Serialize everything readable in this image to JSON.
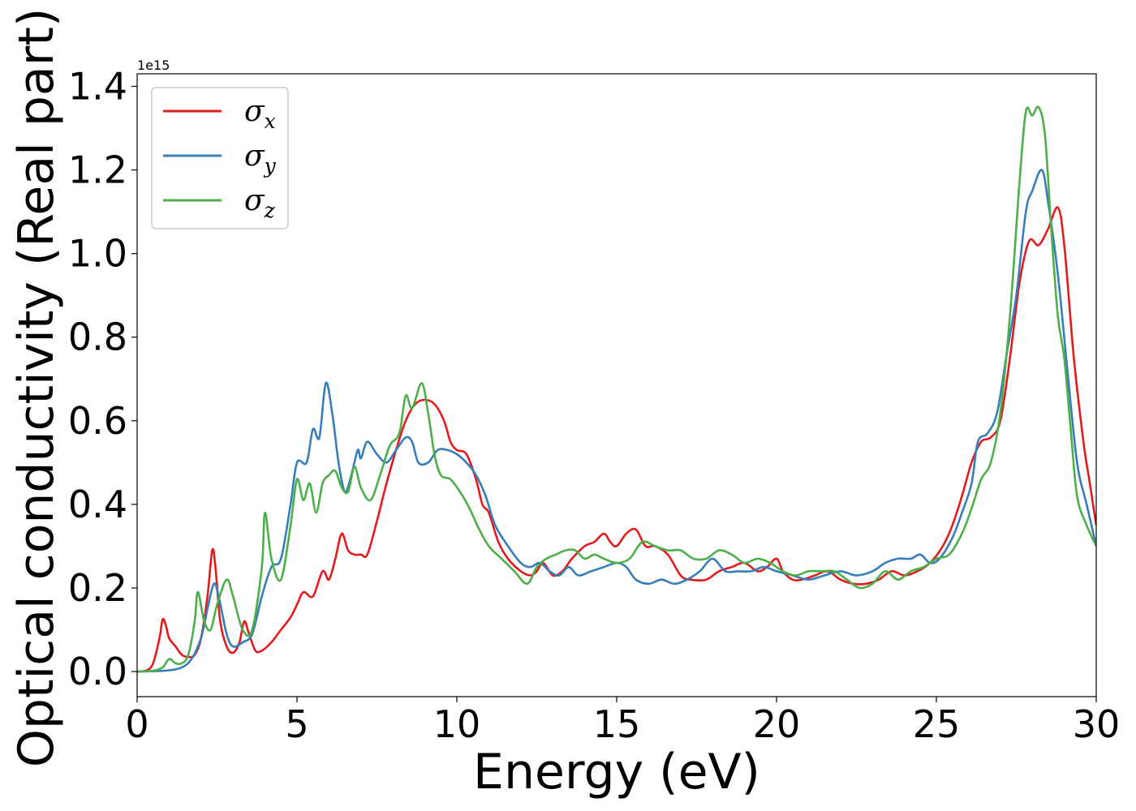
{
  "chart_data": {
    "type": "line",
    "xlabel": "Energy (eV)",
    "ylabel": "Optical conductivity (Real part)",
    "y_offset_label": "1e15",
    "xlim": [
      0,
      30
    ],
    "ylim": [
      -0.06,
      1.43
    ],
    "grid": false,
    "legend_position": "top-left",
    "x_ticks": [
      0,
      5,
      10,
      15,
      20,
      25,
      30
    ],
    "x_tick_labels": [
      "0",
      "5",
      "10",
      "15",
      "20",
      "25",
      "30"
    ],
    "y_ticks": [
      0.0,
      0.2,
      0.4,
      0.6,
      0.8,
      1.0,
      1.2,
      1.4
    ],
    "y_tick_labels": [
      "0.0",
      "0.2",
      "0.4",
      "0.6",
      "0.8",
      "1.0",
      "1.2",
      "1.4"
    ],
    "series": [
      {
        "name": "σx",
        "name_base": "σ",
        "name_sub": "x",
        "color": "#e41a1c",
        "points": [
          [
            0,
            0
          ],
          [
            0.3,
            0.003
          ],
          [
            0.5,
            0.02
          ],
          [
            0.7,
            0.08
          ],
          [
            0.8,
            0.125
          ],
          [
            0.9,
            0.11
          ],
          [
            1.0,
            0.08
          ],
          [
            1.2,
            0.06
          ],
          [
            1.4,
            0.04
          ],
          [
            1.6,
            0.035
          ],
          [
            1.8,
            0.04
          ],
          [
            2.0,
            0.08
          ],
          [
            2.2,
            0.18
          ],
          [
            2.35,
            0.29
          ],
          [
            2.45,
            0.25
          ],
          [
            2.6,
            0.12
          ],
          [
            2.8,
            0.06
          ],
          [
            3.0,
            0.045
          ],
          [
            3.2,
            0.07
          ],
          [
            3.35,
            0.12
          ],
          [
            3.5,
            0.09
          ],
          [
            3.7,
            0.05
          ],
          [
            3.9,
            0.05
          ],
          [
            4.2,
            0.07
          ],
          [
            4.5,
            0.1
          ],
          [
            4.8,
            0.13
          ],
          [
            5.0,
            0.16
          ],
          [
            5.2,
            0.19
          ],
          [
            5.5,
            0.18
          ],
          [
            5.8,
            0.24
          ],
          [
            6.0,
            0.22
          ],
          [
            6.2,
            0.27
          ],
          [
            6.4,
            0.33
          ],
          [
            6.6,
            0.29
          ],
          [
            6.8,
            0.28
          ],
          [
            7.0,
            0.28
          ],
          [
            7.2,
            0.28
          ],
          [
            7.5,
            0.36
          ],
          [
            7.8,
            0.45
          ],
          [
            8.1,
            0.53
          ],
          [
            8.4,
            0.6
          ],
          [
            8.7,
            0.64
          ],
          [
            9.0,
            0.65
          ],
          [
            9.3,
            0.64
          ],
          [
            9.6,
            0.6
          ],
          [
            9.8,
            0.55
          ],
          [
            10.0,
            0.53
          ],
          [
            10.3,
            0.52
          ],
          [
            10.6,
            0.46
          ],
          [
            10.8,
            0.4
          ],
          [
            11.0,
            0.38
          ],
          [
            11.3,
            0.31
          ],
          [
            11.6,
            0.27
          ],
          [
            12.0,
            0.24
          ],
          [
            12.3,
            0.23
          ],
          [
            12.5,
            0.24
          ],
          [
            12.7,
            0.26
          ],
          [
            13.0,
            0.23
          ],
          [
            13.3,
            0.24
          ],
          [
            13.6,
            0.27
          ],
          [
            14.0,
            0.3
          ],
          [
            14.3,
            0.31
          ],
          [
            14.6,
            0.33
          ],
          [
            14.8,
            0.31
          ],
          [
            15.0,
            0.3
          ],
          [
            15.3,
            0.33
          ],
          [
            15.6,
            0.34
          ],
          [
            15.9,
            0.3
          ],
          [
            16.2,
            0.3
          ],
          [
            16.6,
            0.28
          ],
          [
            17.0,
            0.23
          ],
          [
            17.3,
            0.22
          ],
          [
            17.8,
            0.22
          ],
          [
            18.2,
            0.24
          ],
          [
            18.6,
            0.25
          ],
          [
            19.0,
            0.26
          ],
          [
            19.4,
            0.24
          ],
          [
            19.7,
            0.25
          ],
          [
            20.0,
            0.27
          ],
          [
            20.2,
            0.24
          ],
          [
            20.5,
            0.22
          ],
          [
            20.8,
            0.22
          ],
          [
            21.2,
            0.23
          ],
          [
            21.6,
            0.24
          ],
          [
            22.0,
            0.22
          ],
          [
            22.4,
            0.21
          ],
          [
            22.8,
            0.21
          ],
          [
            23.2,
            0.22
          ],
          [
            23.6,
            0.24
          ],
          [
            24.0,
            0.23
          ],
          [
            24.4,
            0.24
          ],
          [
            24.8,
            0.26
          ],
          [
            25.2,
            0.3
          ],
          [
            25.5,
            0.35
          ],
          [
            25.8,
            0.42
          ],
          [
            26.1,
            0.5
          ],
          [
            26.4,
            0.55
          ],
          [
            26.7,
            0.56
          ],
          [
            27.0,
            0.6
          ],
          [
            27.3,
            0.75
          ],
          [
            27.6,
            0.93
          ],
          [
            27.9,
            1.03
          ],
          [
            28.2,
            1.02
          ],
          [
            28.5,
            1.06
          ],
          [
            28.8,
            1.11
          ],
          [
            29.0,
            1.02
          ],
          [
            29.3,
            0.75
          ],
          [
            29.6,
            0.55
          ],
          [
            29.8,
            0.45
          ],
          [
            30.0,
            0.35
          ]
        ]
      },
      {
        "name": "σy",
        "name_base": "σ",
        "name_sub": "y",
        "color": "#377eb8",
        "points": [
          [
            0,
            0
          ],
          [
            0.5,
            0.001
          ],
          [
            1.0,
            0.003
          ],
          [
            1.4,
            0.01
          ],
          [
            1.7,
            0.03
          ],
          [
            2.0,
            0.08
          ],
          [
            2.2,
            0.15
          ],
          [
            2.4,
            0.21
          ],
          [
            2.55,
            0.18
          ],
          [
            2.8,
            0.09
          ],
          [
            3.0,
            0.06
          ],
          [
            3.3,
            0.07
          ],
          [
            3.6,
            0.09
          ],
          [
            3.9,
            0.18
          ],
          [
            4.2,
            0.25
          ],
          [
            4.5,
            0.27
          ],
          [
            4.8,
            0.4
          ],
          [
            5.0,
            0.5
          ],
          [
            5.3,
            0.5
          ],
          [
            5.5,
            0.58
          ],
          [
            5.7,
            0.56
          ],
          [
            5.9,
            0.69
          ],
          [
            6.1,
            0.62
          ],
          [
            6.3,
            0.5
          ],
          [
            6.5,
            0.43
          ],
          [
            6.7,
            0.47
          ],
          [
            6.9,
            0.53
          ],
          [
            7.0,
            0.51
          ],
          [
            7.2,
            0.55
          ],
          [
            7.5,
            0.52
          ],
          [
            7.8,
            0.5
          ],
          [
            8.1,
            0.53
          ],
          [
            8.4,
            0.56
          ],
          [
            8.6,
            0.55
          ],
          [
            8.8,
            0.5
          ],
          [
            9.1,
            0.5
          ],
          [
            9.4,
            0.53
          ],
          [
            9.7,
            0.53
          ],
          [
            10.0,
            0.52
          ],
          [
            10.3,
            0.5
          ],
          [
            10.6,
            0.47
          ],
          [
            10.9,
            0.42
          ],
          [
            11.2,
            0.35
          ],
          [
            11.6,
            0.3
          ],
          [
            12.0,
            0.26
          ],
          [
            12.3,
            0.25
          ],
          [
            12.6,
            0.26
          ],
          [
            12.9,
            0.24
          ],
          [
            13.2,
            0.23
          ],
          [
            13.5,
            0.25
          ],
          [
            13.8,
            0.23
          ],
          [
            14.2,
            0.24
          ],
          [
            14.6,
            0.25
          ],
          [
            15.0,
            0.26
          ],
          [
            15.3,
            0.25
          ],
          [
            15.6,
            0.22
          ],
          [
            16.0,
            0.21
          ],
          [
            16.4,
            0.22
          ],
          [
            16.8,
            0.21
          ],
          [
            17.2,
            0.22
          ],
          [
            17.6,
            0.24
          ],
          [
            18.0,
            0.27
          ],
          [
            18.4,
            0.24
          ],
          [
            18.8,
            0.24
          ],
          [
            19.2,
            0.24
          ],
          [
            19.6,
            0.25
          ],
          [
            20.0,
            0.24
          ],
          [
            20.5,
            0.23
          ],
          [
            21.0,
            0.22
          ],
          [
            21.5,
            0.23
          ],
          [
            22.0,
            0.24
          ],
          [
            22.5,
            0.23
          ],
          [
            23.0,
            0.24
          ],
          [
            23.4,
            0.26
          ],
          [
            23.8,
            0.27
          ],
          [
            24.2,
            0.27
          ],
          [
            24.5,
            0.28
          ],
          [
            24.8,
            0.26
          ],
          [
            25.1,
            0.27
          ],
          [
            25.5,
            0.32
          ],
          [
            25.8,
            0.38
          ],
          [
            26.1,
            0.45
          ],
          [
            26.3,
            0.55
          ],
          [
            26.6,
            0.57
          ],
          [
            26.9,
            0.62
          ],
          [
            27.2,
            0.76
          ],
          [
            27.5,
            0.9
          ],
          [
            27.8,
            1.1
          ],
          [
            28.0,
            1.15
          ],
          [
            28.3,
            1.2
          ],
          [
            28.5,
            1.12
          ],
          [
            28.8,
            0.95
          ],
          [
            29.1,
            0.72
          ],
          [
            29.4,
            0.5
          ],
          [
            29.7,
            0.4
          ],
          [
            30.0,
            0.3
          ]
        ]
      },
      {
        "name": "σz",
        "name_base": "σ",
        "name_sub": "z",
        "color": "#4daf4a",
        "points": [
          [
            0,
            0
          ],
          [
            0.5,
            0.002
          ],
          [
            0.8,
            0.01
          ],
          [
            1.0,
            0.03
          ],
          [
            1.2,
            0.02
          ],
          [
            1.4,
            0.02
          ],
          [
            1.6,
            0.04
          ],
          [
            1.8,
            0.12
          ],
          [
            1.9,
            0.19
          ],
          [
            2.1,
            0.12
          ],
          [
            2.3,
            0.1
          ],
          [
            2.5,
            0.16
          ],
          [
            2.8,
            0.22
          ],
          [
            3.0,
            0.18
          ],
          [
            3.3,
            0.1
          ],
          [
            3.6,
            0.1
          ],
          [
            3.9,
            0.25
          ],
          [
            4.0,
            0.38
          ],
          [
            4.2,
            0.27
          ],
          [
            4.5,
            0.22
          ],
          [
            4.8,
            0.35
          ],
          [
            5.0,
            0.46
          ],
          [
            5.2,
            0.41
          ],
          [
            5.4,
            0.45
          ],
          [
            5.6,
            0.38
          ],
          [
            5.8,
            0.45
          ],
          [
            6.0,
            0.47
          ],
          [
            6.2,
            0.48
          ],
          [
            6.4,
            0.44
          ],
          [
            6.6,
            0.43
          ],
          [
            6.8,
            0.49
          ],
          [
            7.0,
            0.44
          ],
          [
            7.3,
            0.41
          ],
          [
            7.6,
            0.47
          ],
          [
            7.9,
            0.54
          ],
          [
            8.2,
            0.57
          ],
          [
            8.4,
            0.66
          ],
          [
            8.6,
            0.63
          ],
          [
            8.9,
            0.69
          ],
          [
            9.1,
            0.62
          ],
          [
            9.3,
            0.52
          ],
          [
            9.5,
            0.47
          ],
          [
            9.8,
            0.46
          ],
          [
            10.1,
            0.43
          ],
          [
            10.4,
            0.39
          ],
          [
            10.7,
            0.34
          ],
          [
            11.0,
            0.3
          ],
          [
            11.4,
            0.27
          ],
          [
            11.8,
            0.24
          ],
          [
            12.2,
            0.21
          ],
          [
            12.5,
            0.25
          ],
          [
            12.8,
            0.27
          ],
          [
            13.1,
            0.28
          ],
          [
            13.4,
            0.29
          ],
          [
            13.7,
            0.29
          ],
          [
            14.0,
            0.27
          ],
          [
            14.3,
            0.28
          ],
          [
            14.6,
            0.27
          ],
          [
            15.0,
            0.26
          ],
          [
            15.4,
            0.27
          ],
          [
            15.8,
            0.31
          ],
          [
            16.2,
            0.3
          ],
          [
            16.6,
            0.29
          ],
          [
            17.0,
            0.29
          ],
          [
            17.4,
            0.27
          ],
          [
            17.8,
            0.27
          ],
          [
            18.2,
            0.29
          ],
          [
            18.6,
            0.28
          ],
          [
            19.0,
            0.26
          ],
          [
            19.4,
            0.27
          ],
          [
            19.8,
            0.26
          ],
          [
            20.2,
            0.24
          ],
          [
            20.6,
            0.23
          ],
          [
            21.0,
            0.24
          ],
          [
            21.4,
            0.24
          ],
          [
            21.8,
            0.24
          ],
          [
            22.2,
            0.22
          ],
          [
            22.6,
            0.2
          ],
          [
            23.0,
            0.21
          ],
          [
            23.4,
            0.24
          ],
          [
            23.8,
            0.22
          ],
          [
            24.2,
            0.24
          ],
          [
            24.6,
            0.25
          ],
          [
            25.0,
            0.27
          ],
          [
            25.4,
            0.28
          ],
          [
            25.8,
            0.33
          ],
          [
            26.1,
            0.39
          ],
          [
            26.4,
            0.46
          ],
          [
            26.7,
            0.5
          ],
          [
            27.0,
            0.62
          ],
          [
            27.3,
            0.85
          ],
          [
            27.6,
            1.17
          ],
          [
            27.8,
            1.34
          ],
          [
            28.0,
            1.33
          ],
          [
            28.2,
            1.35
          ],
          [
            28.4,
            1.28
          ],
          [
            28.6,
            1.05
          ],
          [
            28.8,
            0.85
          ],
          [
            29.0,
            0.75
          ],
          [
            29.2,
            0.58
          ],
          [
            29.4,
            0.42
          ],
          [
            29.7,
            0.35
          ],
          [
            30.0,
            0.3
          ]
        ]
      }
    ]
  }
}
